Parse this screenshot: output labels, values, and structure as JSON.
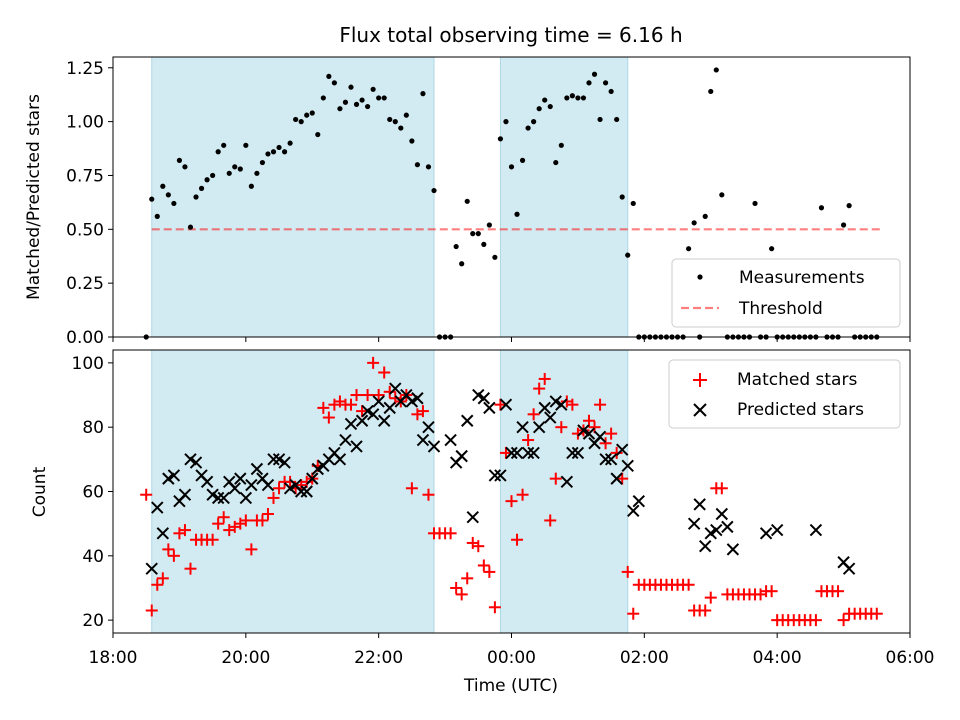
{
  "figure": {
    "title": "Flux total observing time = 6.16 h",
    "xlabel": "Time (UTC)"
  },
  "colors": {
    "band": "#add8e6",
    "measurements": "#000000",
    "threshold": "#ff0000",
    "matched": "#ff0000",
    "predicted": "#000000"
  },
  "chart_data": [
    {
      "type": "scatter",
      "ylabel": "Matched/Predicted stars",
      "xlim": [
        "18:00",
        "06:00"
      ],
      "ylim": [
        0,
        1.3
      ],
      "yticks": [
        "0.00",
        "0.25",
        "0.50",
        "0.75",
        "1.00",
        "1.25"
      ],
      "xticks": [
        "18:00",
        "20:00",
        "22:00",
        "00:00",
        "02:00",
        "04:00",
        "06:00"
      ],
      "shaded_intervals": [
        [
          "18:35",
          "22:50"
        ],
        [
          "23:50",
          "01:45"
        ]
      ],
      "legend": {
        "position": "lower-right",
        "entries": [
          "Measurements",
          "Threshold"
        ]
      },
      "threshold": {
        "name": "Threshold",
        "value": 0.5,
        "x_range": [
          "18:35",
          "05:35"
        ]
      },
      "series": [
        {
          "name": "Measurements",
          "x": [
            "18:30",
            "18:35",
            "18:40",
            "18:45",
            "18:50",
            "18:55",
            "19:00",
            "19:05",
            "19:10",
            "19:15",
            "19:20",
            "19:25",
            "19:30",
            "19:35",
            "19:40",
            "19:45",
            "19:50",
            "19:55",
            "20:00",
            "20:05",
            "20:10",
            "20:15",
            "20:20",
            "20:25",
            "20:30",
            "20:35",
            "20:40",
            "20:45",
            "20:50",
            "20:55",
            "21:00",
            "21:05",
            "21:10",
            "21:15",
            "21:20",
            "21:25",
            "21:30",
            "21:35",
            "21:40",
            "21:45",
            "21:50",
            "21:55",
            "22:00",
            "22:05",
            "22:10",
            "22:15",
            "22:20",
            "22:25",
            "22:30",
            "22:35",
            "22:40",
            "22:45",
            "22:50",
            "22:55",
            "23:00",
            "23:05",
            "23:10",
            "23:15",
            "23:20",
            "23:25",
            "23:30",
            "23:35",
            "23:40",
            "23:45",
            "23:50",
            "23:55",
            "00:00",
            "00:05",
            "00:10",
            "00:15",
            "00:20",
            "00:25",
            "00:30",
            "00:35",
            "00:40",
            "00:45",
            "00:50",
            "00:55",
            "01:00",
            "01:05",
            "01:10",
            "01:15",
            "01:20",
            "01:25",
            "01:30",
            "01:35",
            "01:40",
            "01:45",
            "01:50",
            "01:55",
            "02:00",
            "02:05",
            "02:10",
            "02:15",
            "02:20",
            "02:25",
            "02:30",
            "02:35",
            "02:40",
            "02:45",
            "02:50",
            "02:55",
            "03:00",
            "03:05",
            "03:10",
            "03:15",
            "03:20",
            "03:25",
            "03:30",
            "03:35",
            "03:40",
            "03:45",
            "03:50",
            "03:55",
            "04:00",
            "04:05",
            "04:10",
            "04:15",
            "04:20",
            "04:25",
            "04:30",
            "04:35",
            "04:40",
            "04:45",
            "04:50",
            "04:55",
            "05:00",
            "05:05",
            "05:10",
            "05:15",
            "05:20",
            "05:25",
            "05:30"
          ],
          "y": [
            0.0,
            0.64,
            0.56,
            0.7,
            0.66,
            0.62,
            0.82,
            0.79,
            0.51,
            0.65,
            0.69,
            0.73,
            0.75,
            0.86,
            0.89,
            0.76,
            0.79,
            0.78,
            0.89,
            0.7,
            0.76,
            0.81,
            0.85,
            0.86,
            0.88,
            0.86,
            0.9,
            1.01,
            1.0,
            1.03,
            1.04,
            0.94,
            1.11,
            1.21,
            1.18,
            1.06,
            1.09,
            1.16,
            1.08,
            1.1,
            1.07,
            1.15,
            1.11,
            1.11,
            1.01,
            1.0,
            0.97,
            1.03,
            0.91,
            0.8,
            1.13,
            0.79,
            0.68,
            0.0,
            0.0,
            0.0,
            0.42,
            0.34,
            0.63,
            0.48,
            0.48,
            0.43,
            0.52,
            0.37,
            0.92,
            1.0,
            0.79,
            0.57,
            0.82,
            0.97,
            1.0,
            1.06,
            1.1,
            1.07,
            0.81,
            0.89,
            1.11,
            1.12,
            1.11,
            1.11,
            1.18,
            1.22,
            1.01,
            1.18,
            1.14,
            1.01,
            0.65,
            0.38,
            0.62,
            0.0,
            0.0,
            0.0,
            0.0,
            0.0,
            0.0,
            0.0,
            0.0,
            0.0,
            0.41,
            0.53,
            0.0,
            0.56,
            1.14,
            1.24,
            0.66,
            0.0,
            0.0,
            0.0,
            0.0,
            0.0,
            0.62,
            0.0,
            0.0,
            0.41,
            0.0,
            0.0,
            0.0,
            0.0,
            0.0,
            0.0,
            0.0,
            0.0,
            0.6,
            0.0,
            0.0,
            0.0,
            0.52,
            0.61,
            0.0,
            0.0,
            0.0,
            0.0,
            0.0
          ]
        }
      ]
    },
    {
      "type": "scatter",
      "ylabel": "Count",
      "xlabel": "Time (UTC)",
      "xlim": [
        "18:00",
        "06:00"
      ],
      "ylim": [
        16,
        104
      ],
      "yticks": [
        "20",
        "40",
        "60",
        "80",
        "100"
      ],
      "xticks": [
        "18:00",
        "20:00",
        "22:00",
        "00:00",
        "02:00",
        "04:00",
        "06:00"
      ],
      "shaded_intervals": [
        [
          "18:35",
          "22:50"
        ],
        [
          "23:50",
          "01:45"
        ]
      ],
      "legend": {
        "position": "top-right",
        "entries": [
          "Matched stars",
          "Predicted stars"
        ]
      },
      "series": [
        {
          "name": "Matched stars",
          "marker": "plus",
          "x": [
            "18:30",
            "18:35",
            "18:40",
            "18:45",
            "18:50",
            "18:55",
            "19:00",
            "19:05",
            "19:10",
            "19:15",
            "19:20",
            "19:25",
            "19:30",
            "19:35",
            "19:40",
            "19:45",
            "19:50",
            "19:55",
            "20:00",
            "20:05",
            "20:10",
            "20:15",
            "20:20",
            "20:25",
            "20:30",
            "20:35",
            "20:40",
            "20:45",
            "20:50",
            "20:55",
            "21:00",
            "21:05",
            "21:10",
            "21:15",
            "21:20",
            "21:25",
            "21:30",
            "21:35",
            "21:40",
            "21:45",
            "21:50",
            "21:55",
            "22:00",
            "22:05",
            "22:10",
            "22:15",
            "22:20",
            "22:25",
            "22:30",
            "22:35",
            "22:40",
            "22:45",
            "22:50",
            "22:55",
            "23:00",
            "23:05",
            "23:10",
            "23:15",
            "23:20",
            "23:25",
            "23:30",
            "23:35",
            "23:40",
            "23:45",
            "23:50",
            "23:55",
            "00:00",
            "00:05",
            "00:10",
            "00:15",
            "00:20",
            "00:25",
            "00:30",
            "00:35",
            "00:40",
            "00:45",
            "00:50",
            "00:55",
            "01:00",
            "01:05",
            "01:10",
            "01:15",
            "01:20",
            "01:25",
            "01:30",
            "01:35",
            "01:40",
            "01:45",
            "01:50",
            "01:55",
            "02:00",
            "02:05",
            "02:10",
            "02:15",
            "02:20",
            "02:25",
            "02:30",
            "02:35",
            "02:40",
            "02:45",
            "02:50",
            "02:55",
            "03:00",
            "03:05",
            "03:10",
            "03:15",
            "03:20",
            "03:25",
            "03:30",
            "03:35",
            "03:40",
            "03:45",
            "03:50",
            "03:55",
            "04:00",
            "04:05",
            "04:10",
            "04:15",
            "04:20",
            "04:25",
            "04:30",
            "04:35",
            "04:40",
            "04:45",
            "04:50",
            "04:55",
            "05:00",
            "05:05",
            "05:10",
            "05:15",
            "05:20",
            "05:25",
            "05:30"
          ],
          "y": [
            59,
            23,
            31,
            33,
            42,
            40,
            47,
            48,
            36,
            45,
            45,
            45,
            45,
            50,
            52,
            48,
            49,
            50,
            51,
            42,
            51,
            51,
            53,
            58,
            61,
            63,
            63,
            61,
            62,
            63,
            64,
            68,
            86,
            83,
            87,
            88,
            87,
            87,
            90,
            85,
            90,
            100,
            90,
            97,
            91,
            89,
            88,
            90,
            61,
            84,
            85,
            59,
            47,
            47,
            47,
            47,
            30,
            28,
            33,
            44,
            43,
            37,
            35,
            24,
            87,
            72,
            57,
            45,
            59,
            76,
            84,
            92,
            95,
            51,
            64,
            80,
            88,
            87,
            78,
            79,
            82,
            80,
            87,
            75,
            78,
            72,
            64,
            35,
            22,
            31,
            31,
            31,
            31,
            31,
            31,
            31,
            31,
            31,
            31,
            23,
            23,
            23,
            27,
            61,
            61,
            28,
            28,
            28,
            28,
            28,
            28,
            28,
            29,
            29,
            20,
            20,
            20,
            20,
            20,
            20,
            20,
            20,
            29,
            29,
            29,
            29,
            20,
            22,
            22,
            22,
            22,
            22,
            22
          ]
        },
        {
          "name": "Predicted stars",
          "marker": "x",
          "x": [
            "18:35",
            "18:40",
            "18:45",
            "18:50",
            "18:55",
            "19:00",
            "19:05",
            "19:10",
            "19:15",
            "19:20",
            "19:25",
            "19:30",
            "19:35",
            "19:40",
            "19:45",
            "19:50",
            "19:55",
            "20:00",
            "20:05",
            "20:10",
            "20:15",
            "20:20",
            "20:25",
            "20:30",
            "20:35",
            "20:40",
            "20:45",
            "20:50",
            "20:55",
            "21:00",
            "21:05",
            "21:10",
            "21:15",
            "21:20",
            "21:25",
            "21:30",
            "21:35",
            "21:40",
            "21:45",
            "21:50",
            "21:55",
            "22:00",
            "22:05",
            "22:10",
            "22:15",
            "22:20",
            "22:25",
            "22:30",
            "22:35",
            "22:40",
            "22:45",
            "22:50",
            "23:05",
            "23:10",
            "23:15",
            "23:20",
            "23:25",
            "23:30",
            "23:35",
            "23:40",
            "23:45",
            "23:50",
            "23:55",
            "00:00",
            "00:05",
            "00:10",
            "00:15",
            "00:20",
            "00:25",
            "00:30",
            "00:35",
            "00:40",
            "00:45",
            "00:50",
            "00:55",
            "01:00",
            "01:05",
            "01:10",
            "01:15",
            "01:20",
            "01:25",
            "01:30",
            "01:35",
            "01:40",
            "01:45",
            "01:50",
            "01:55",
            "02:45",
            "02:50",
            "02:55",
            "03:00",
            "03:05",
            "03:10",
            "03:15",
            "03:20",
            "03:50",
            "04:00",
            "04:35",
            "05:00",
            "05:05"
          ],
          "y": [
            36,
            55,
            47,
            64,
            65,
            57,
            59,
            70,
            69,
            65,
            63,
            59,
            58,
            58,
            63,
            61,
            64,
            58,
            62,
            67,
            64,
            62,
            70,
            70,
            69,
            61,
            62,
            60,
            60,
            64,
            67,
            68,
            70,
            72,
            70,
            76,
            81,
            74,
            82,
            85,
            84,
            88,
            82,
            86,
            92,
            88,
            90,
            88,
            89,
            76,
            80,
            74,
            76,
            69,
            71,
            82,
            52,
            90,
            89,
            86,
            65,
            65,
            87,
            72,
            72,
            80,
            72,
            72,
            80,
            86,
            83,
            88,
            87,
            63,
            72,
            72,
            79,
            78,
            75,
            77,
            70,
            70,
            64,
            73,
            68,
            54,
            57,
            50,
            56,
            43,
            47,
            48,
            53,
            49,
            42,
            47,
            48,
            48,
            38,
            36
          ]
        }
      ]
    }
  ]
}
